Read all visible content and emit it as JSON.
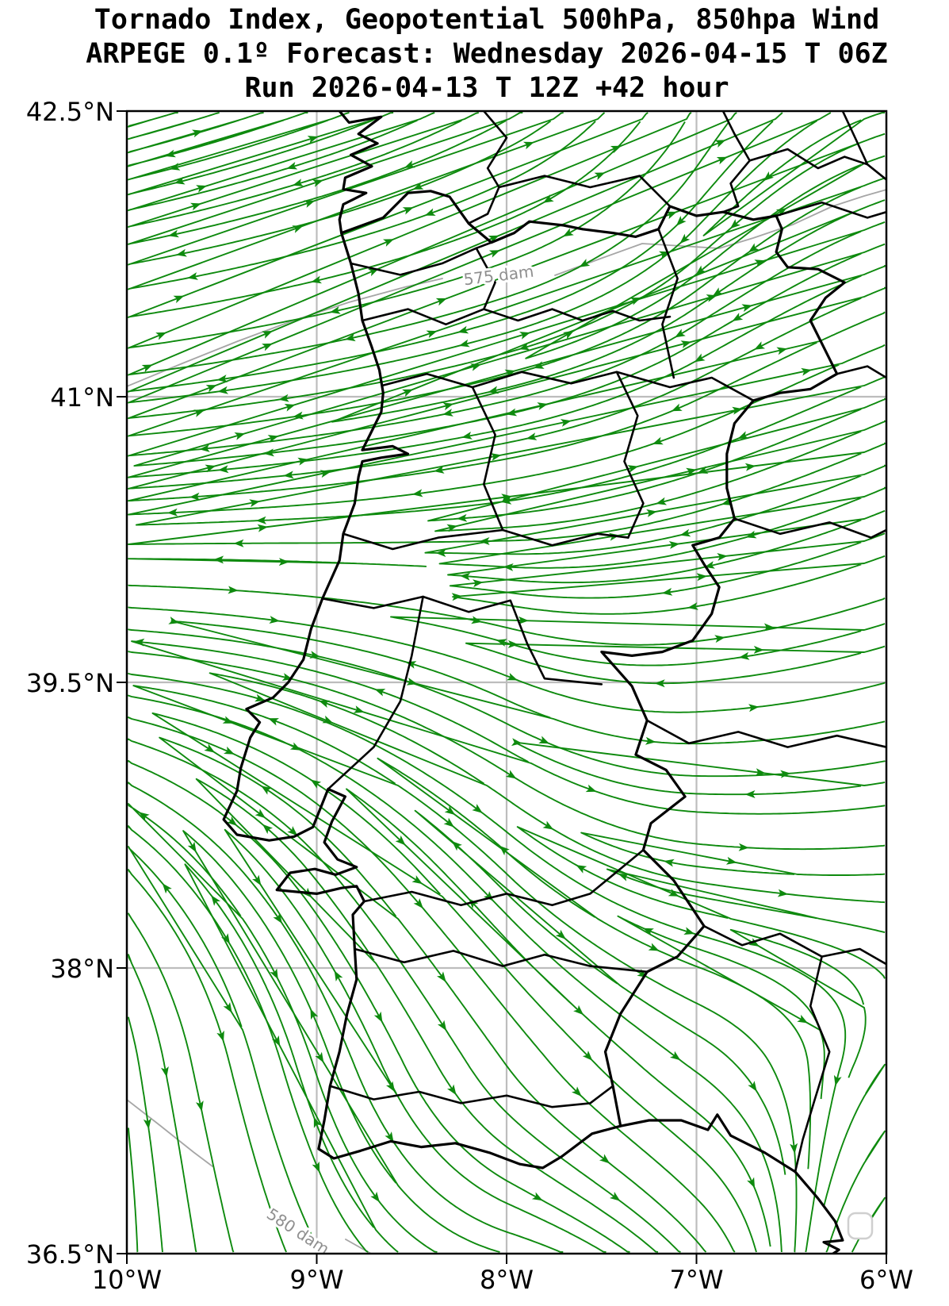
{
  "title": {
    "line1": "Tornado Index, Geopotential 500hPa, 850hpa Wind",
    "line2": "ARPEGE 0.1º Forecast: Wednesday 2026-04-15 T 06Z",
    "line3": "Run 2026-04-13 T 12Z +42 hour"
  },
  "axes": {
    "x": {
      "min": -10,
      "max": -6,
      "ticks": [
        {
          "value": -10,
          "label": "10°W"
        },
        {
          "value": -9,
          "label": "9°W"
        },
        {
          "value": -8,
          "label": "8°W"
        },
        {
          "value": -7,
          "label": "7°W"
        },
        {
          "value": -6,
          "label": "6°W"
        }
      ]
    },
    "y": {
      "min": 36.5,
      "max": 42.5,
      "ticks": [
        {
          "value": 42.5,
          "label": "42.5°N"
        },
        {
          "value": 41,
          "label": "41°N"
        },
        {
          "value": 39.5,
          "label": "39.5°N"
        },
        {
          "value": 38,
          "label": "38°N"
        },
        {
          "value": 36.5,
          "label": "36.5°N"
        }
      ]
    },
    "grid": true
  },
  "contours": [
    {
      "label": "575 dam",
      "value": 575,
      "units": "dam"
    },
    {
      "label": "580 dam",
      "value": 580,
      "units": "dam"
    }
  ],
  "wind_field": {
    "lons": [
      -10,
      -9,
      -8,
      -7,
      -6
    ],
    "lats": [
      42.5,
      41.5,
      40.5,
      39.5,
      38.5,
      37.5,
      36.5
    ],
    "uv": [
      [
        [
          1.0,
          0.28
        ],
        [
          1.0,
          0.36
        ],
        [
          0.9,
          0.5
        ],
        [
          0.5,
          0.95
        ],
        [
          1.05,
          0.3
        ]
      ],
      [
        [
          1.0,
          0.16
        ],
        [
          1.0,
          0.22
        ],
        [
          0.95,
          0.3
        ],
        [
          0.8,
          0.55
        ],
        [
          1.0,
          0.4
        ]
      ],
      [
        [
          1.0,
          0.06
        ],
        [
          1.0,
          0.1
        ],
        [
          1.0,
          0.16
        ],
        [
          1.0,
          0.3
        ],
        [
          0.95,
          0.4
        ]
      ],
      [
        [
          0.95,
          -0.12
        ],
        [
          0.92,
          -0.26
        ],
        [
          0.9,
          -0.38
        ],
        [
          1.0,
          0.08
        ],
        [
          1.05,
          0.28
        ]
      ],
      [
        [
          0.55,
          -0.6
        ],
        [
          0.58,
          -0.7
        ],
        [
          0.65,
          -0.62
        ],
        [
          0.92,
          -0.12
        ],
        [
          0.9,
          0.05
        ]
      ],
      [
        [
          0.15,
          -0.95
        ],
        [
          0.3,
          -0.9
        ],
        [
          0.55,
          -0.75
        ],
        [
          0.7,
          -0.5
        ],
        [
          -0.4,
          -0.5
        ]
      ],
      [
        [
          0.02,
          -1.0
        ],
        [
          0.35,
          -0.68
        ],
        [
          0.88,
          -0.22
        ],
        [
          0.5,
          -0.6
        ],
        [
          -0.55,
          -0.75
        ]
      ]
    ]
  },
  "colors": {
    "streamline": "#0e8a0e",
    "border": "#000000",
    "grid": "#bdbdbd",
    "contour": "#a6a6a6",
    "contour_label": "#8f8f8f",
    "frame": "#000000",
    "tick": "#000000",
    "corner_box_border": "#cfcfcf",
    "background": "#ffffff"
  }
}
